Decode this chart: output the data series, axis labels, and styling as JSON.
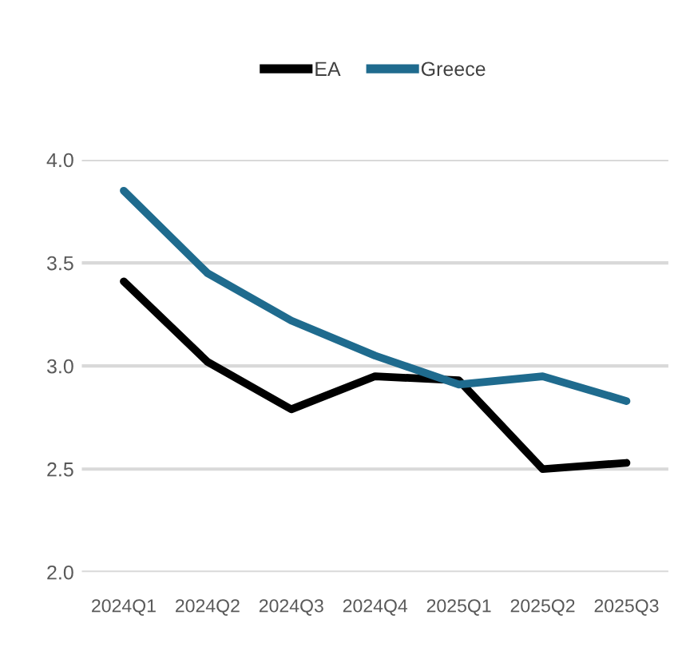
{
  "chart_data": {
    "type": "line",
    "categories": [
      "2024Q1",
      "2024Q2",
      "2024Q3",
      "2024Q4",
      "2025Q1",
      "2025Q2",
      "2025Q3"
    ],
    "series": [
      {
        "name": "EA",
        "color": "#000000",
        "values": [
          3.41,
          3.02,
          2.79,
          2.95,
          2.93,
          2.5,
          2.53
        ]
      },
      {
        "name": "Greece",
        "color": "#1f6b8e",
        "values": [
          3.85,
          3.45,
          3.22,
          3.05,
          2.91,
          2.95,
          2.83
        ]
      }
    ],
    "ylim": [
      2.0,
      4.0
    ],
    "yticks": [
      {
        "value": 2.0,
        "label": "2.0"
      },
      2.5,
      {
        "value": 3.0,
        "label": "3.0"
      },
      3.5,
      {
        "value": 4.0,
        "label": "4.0"
      }
    ],
    "grid": "y",
    "legend": "top",
    "marker": "none",
    "line_style": "solid"
  }
}
